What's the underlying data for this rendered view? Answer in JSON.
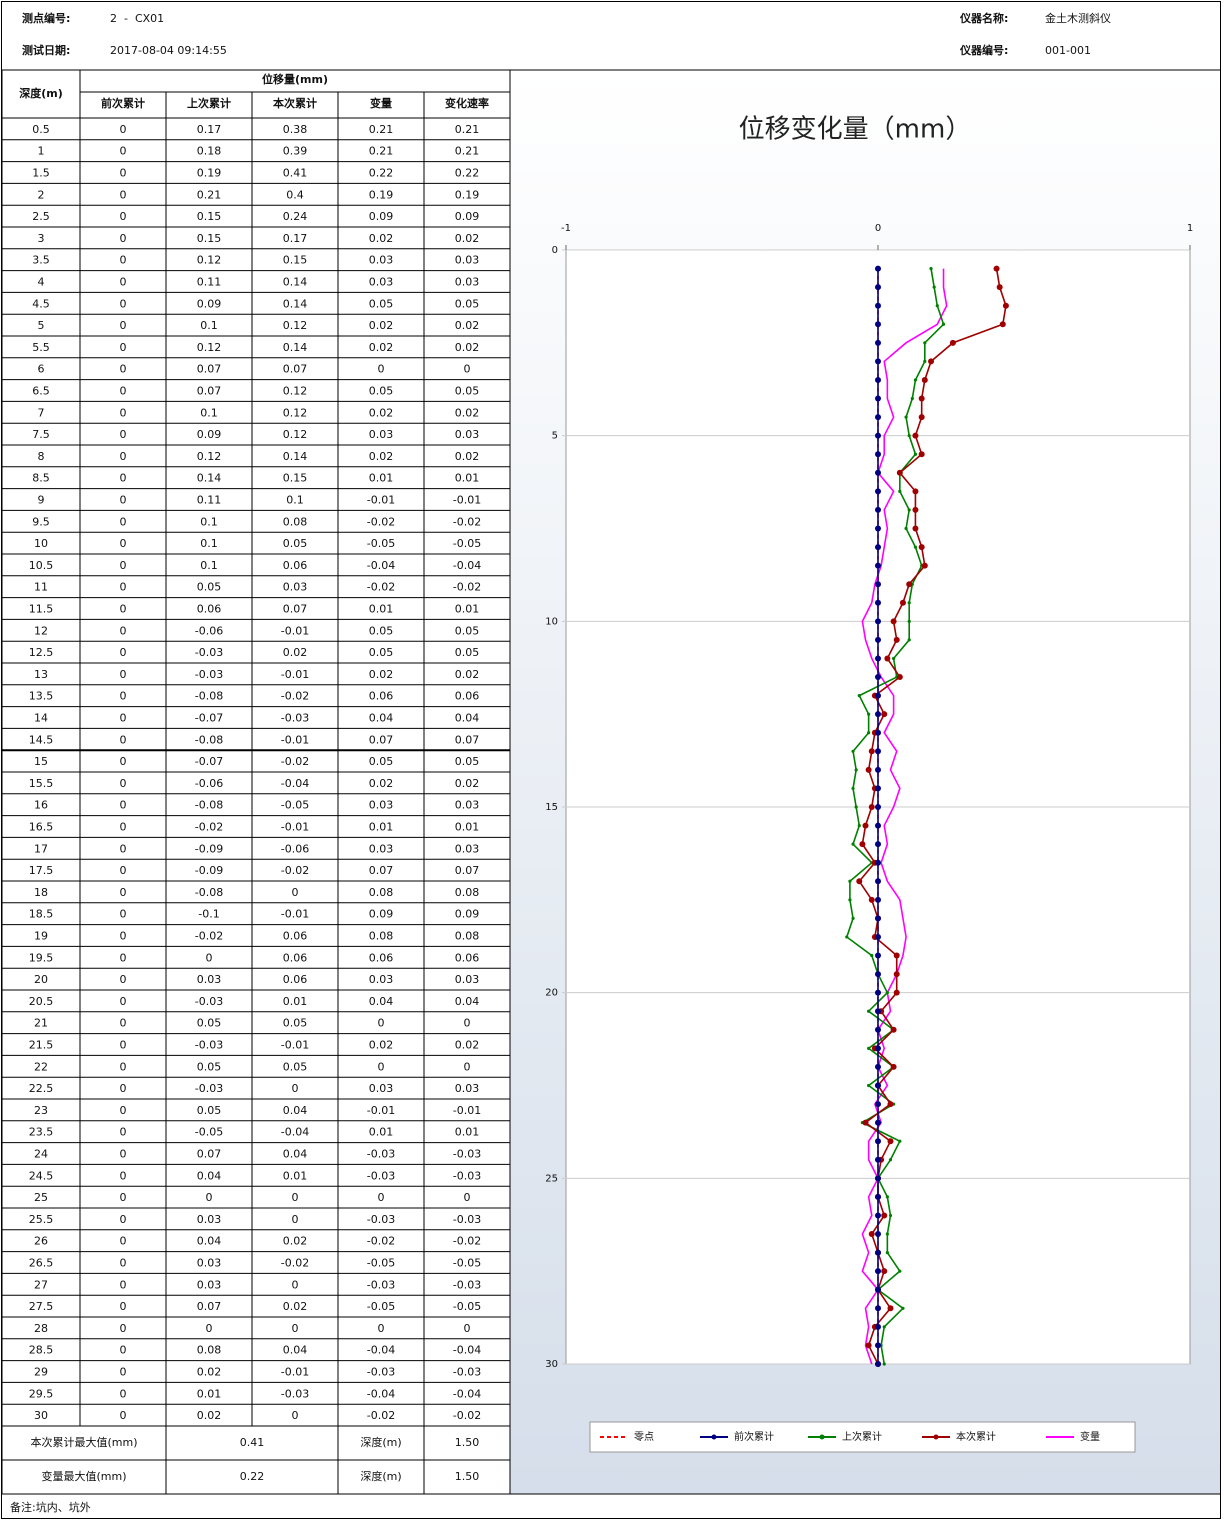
{
  "header": {
    "point_label": "测点编号:",
    "point": "2  -  CX01",
    "date_label": "测试日期:",
    "date": "2017-08-04 09:14:55",
    "instrument_label": "仪器名称:",
    "instrument": "金土木测斜仪",
    "serial_label": "仪器编号:",
    "serial": "001-001"
  },
  "table": {
    "depth_header": "深度(m)",
    "group_header": "位移量(mm)",
    "columns": [
      "前次累计",
      "上次累计",
      "本次累计",
      "变量",
      "变化速率"
    ],
    "rows": [
      [
        0.5,
        0,
        0.17,
        0.38,
        0.21,
        0.21
      ],
      [
        1,
        0,
        0.18,
        0.39,
        0.21,
        0.21
      ],
      [
        1.5,
        0,
        0.19,
        0.41,
        0.22,
        0.22
      ],
      [
        2,
        0,
        0.21,
        0.4,
        0.19,
        0.19
      ],
      [
        2.5,
        0,
        0.15,
        0.24,
        0.09,
        0.09
      ],
      [
        3,
        0,
        0.15,
        0.17,
        0.02,
        0.02
      ],
      [
        3.5,
        0,
        0.12,
        0.15,
        0.03,
        0.03
      ],
      [
        4,
        0,
        0.11,
        0.14,
        0.03,
        0.03
      ],
      [
        4.5,
        0,
        0.09,
        0.14,
        0.05,
        0.05
      ],
      [
        5,
        0,
        0.1,
        0.12,
        0.02,
        0.02
      ],
      [
        5.5,
        0,
        0.12,
        0.14,
        0.02,
        0.02
      ],
      [
        6,
        0,
        0.07,
        0.07,
        0,
        0
      ],
      [
        6.5,
        0,
        0.07,
        0.12,
        0.05,
        0.05
      ],
      [
        7,
        0,
        0.1,
        0.12,
        0.02,
        0.02
      ],
      [
        7.5,
        0,
        0.09,
        0.12,
        0.03,
        0.03
      ],
      [
        8,
        0,
        0.12,
        0.14,
        0.02,
        0.02
      ],
      [
        8.5,
        0,
        0.14,
        0.15,
        0.01,
        0.01
      ],
      [
        9,
        0,
        0.11,
        0.1,
        -0.01,
        -0.01
      ],
      [
        9.5,
        0,
        0.1,
        0.08,
        -0.02,
        -0.02
      ],
      [
        10,
        0,
        0.1,
        0.05,
        -0.05,
        -0.05
      ],
      [
        10.5,
        0,
        0.1,
        0.06,
        -0.04,
        -0.04
      ],
      [
        11,
        0,
        0.05,
        0.03,
        -0.02,
        -0.02
      ],
      [
        11.5,
        0,
        0.06,
        0.07,
        0.01,
        0.01
      ],
      [
        12,
        0,
        -0.06,
        -0.01,
        0.05,
        0.05
      ],
      [
        12.5,
        0,
        -0.03,
        0.02,
        0.05,
        0.05
      ],
      [
        13,
        0,
        -0.03,
        -0.01,
        0.02,
        0.02
      ],
      [
        13.5,
        0,
        -0.08,
        -0.02,
        0.06,
        0.06
      ],
      [
        14,
        0,
        -0.07,
        -0.03,
        0.04,
        0.04
      ],
      [
        14.5,
        0,
        -0.08,
        -0.01,
        0.07,
        0.07
      ],
      [
        15,
        0,
        -0.07,
        -0.02,
        0.05,
        0.05
      ],
      [
        15.5,
        0,
        -0.06,
        -0.04,
        0.02,
        0.02
      ],
      [
        16,
        0,
        -0.08,
        -0.05,
        0.03,
        0.03
      ],
      [
        16.5,
        0,
        -0.02,
        -0.01,
        0.01,
        0.01
      ],
      [
        17,
        0,
        -0.09,
        -0.06,
        0.03,
        0.03
      ],
      [
        17.5,
        0,
        -0.09,
        -0.02,
        0.07,
        0.07
      ],
      [
        18,
        0,
        -0.08,
        0,
        0.08,
        0.08
      ],
      [
        18.5,
        0,
        -0.1,
        -0.01,
        0.09,
        0.09
      ],
      [
        19,
        0,
        -0.02,
        0.06,
        0.08,
        0.08
      ],
      [
        19.5,
        0,
        0,
        0.06,
        0.06,
        0.06
      ],
      [
        20,
        0,
        0.03,
        0.06,
        0.03,
        0.03
      ],
      [
        20.5,
        0,
        -0.03,
        0.01,
        0.04,
        0.04
      ],
      [
        21,
        0,
        0.05,
        0.05,
        0,
        0
      ],
      [
        21.5,
        0,
        -0.03,
        -0.01,
        0.02,
        0.02
      ],
      [
        22,
        0,
        0.05,
        0.05,
        0,
        0
      ],
      [
        22.5,
        0,
        -0.03,
        0,
        0.03,
        0.03
      ],
      [
        23,
        0,
        0.05,
        0.04,
        -0.01,
        -0.01
      ],
      [
        23.5,
        0,
        -0.05,
        -0.04,
        0.01,
        0.01
      ],
      [
        24,
        0,
        0.07,
        0.04,
        -0.03,
        -0.03
      ],
      [
        24.5,
        0,
        0.04,
        0.01,
        -0.03,
        -0.03
      ],
      [
        25,
        0,
        0,
        0,
        0,
        0
      ],
      [
        25.5,
        0,
        0.03,
        0,
        -0.03,
        -0.03
      ],
      [
        26,
        0,
        0.04,
        0.02,
        -0.02,
        -0.02
      ],
      [
        26.5,
        0,
        0.03,
        -0.02,
        -0.05,
        -0.05
      ],
      [
        27,
        0,
        0.03,
        0,
        -0.03,
        -0.03
      ],
      [
        27.5,
        0,
        0.07,
        0.02,
        -0.05,
        -0.05
      ],
      [
        28,
        0,
        0,
        0,
        0,
        0
      ],
      [
        28.5,
        0,
        0.08,
        0.04,
        -0.04,
        -0.04
      ],
      [
        29,
        0,
        0.02,
        -0.01,
        -0.03,
        -0.03
      ],
      [
        29.5,
        0,
        0.01,
        -0.03,
        -0.04,
        -0.04
      ],
      [
        30,
        0,
        0.02,
        0,
        -0.02,
        -0.02
      ]
    ]
  },
  "summary": {
    "rows": [
      [
        "本次累计最大值(mm)",
        0.41,
        "深度(m)",
        "1.50"
      ],
      [
        "变量最大值(mm)",
        0.22,
        "深度(m)",
        "1.50"
      ]
    ]
  },
  "chart": {
    "title": "位移变化量（mm）",
    "xlim": [
      -1,
      1
    ],
    "xticks": [
      -1,
      0,
      1
    ],
    "ylim": [
      0,
      30
    ],
    "yticks": [
      0,
      5,
      10,
      15,
      20,
      25,
      30
    ],
    "legend": [
      {
        "name": "零点",
        "color": "#ff0000"
      },
      {
        "name": "前次累计",
        "color": "#000080"
      },
      {
        "name": "上次累计",
        "color": "#008000"
      },
      {
        "name": "本次累计",
        "color": "#a00000"
      },
      {
        "name": "变量",
        "color": "#ff00ff"
      }
    ]
  },
  "note": "备注:坑内、坑外"
}
